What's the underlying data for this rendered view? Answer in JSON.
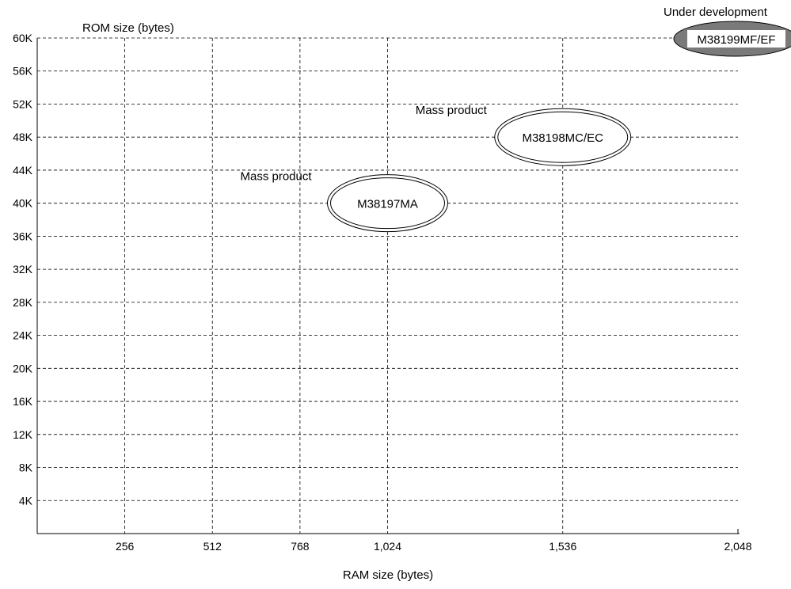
{
  "chart_data": {
    "type": "scatter",
    "title": "",
    "ylabel": "ROM size (bytes)",
    "xlabel": "RAM size (bytes)",
    "xlim": [
      0,
      2048
    ],
    "ylim": [
      0,
      61440
    ],
    "x_ticks": [
      {
        "value": 256,
        "label": "256"
      },
      {
        "value": 512,
        "label": "512"
      },
      {
        "value": 768,
        "label": "768"
      },
      {
        "value": 1024,
        "label": "1,024"
      },
      {
        "value": 1536,
        "label": "1,536"
      },
      {
        "value": 2048,
        "label": "2,048"
      }
    ],
    "y_ticks": [
      {
        "value": 4096,
        "label": "4K"
      },
      {
        "value": 8192,
        "label": "8K"
      },
      {
        "value": 12288,
        "label": "12K"
      },
      {
        "value": 16384,
        "label": "16K"
      },
      {
        "value": 20480,
        "label": "20K"
      },
      {
        "value": 24576,
        "label": "24K"
      },
      {
        "value": 28672,
        "label": "28K"
      },
      {
        "value": 32768,
        "label": "32K"
      },
      {
        "value": 36864,
        "label": "36K"
      },
      {
        "value": 40960,
        "label": "40K"
      },
      {
        "value": 45056,
        "label": "44K"
      },
      {
        "value": 49152,
        "label": "48K"
      },
      {
        "value": 53248,
        "label": "52K"
      },
      {
        "value": 57344,
        "label": "56K"
      },
      {
        "value": 61440,
        "label": "60K"
      }
    ],
    "grid": true,
    "grid_style": "dashed",
    "products": [
      {
        "name": "M38197MA",
        "ram": 1024,
        "rom": 40960,
        "status": "Mass product",
        "style": "double-outline"
      },
      {
        "name": "M38198MC/EC",
        "ram": 1536,
        "rom": 49152,
        "status": "Mass product",
        "style": "double-outline"
      },
      {
        "name": "M38199MF/EF",
        "ram": 2048,
        "rom": 61440,
        "status": "Under development",
        "style": "filled",
        "fill": "#7a7a7a"
      }
    ]
  }
}
